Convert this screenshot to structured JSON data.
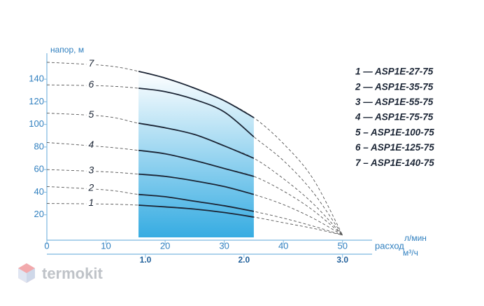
{
  "chart_data": {
    "type": "line",
    "y_label": "напор, м",
    "x_label": "расход",
    "x_unit": "л/мин",
    "x2_unit": "м³/ч",
    "x": [
      0,
      10,
      15.5,
      20,
      25,
      30,
      35,
      40,
      45,
      50
    ],
    "xlim": [
      0,
      55
    ],
    "xticks": [
      0,
      10,
      20,
      30,
      40,
      50
    ],
    "x2lim": [
      0,
      3.3
    ],
    "x2ticks": [
      {
        "value": 1,
        "label": "1.0"
      },
      {
        "value": 2,
        "label": "2.0"
      },
      {
        "value": 3,
        "label": "3.0"
      }
    ],
    "ylim": [
      0,
      163
    ],
    "yticks": [
      20,
      40,
      60,
      80,
      100,
      120,
      140
    ],
    "operating_range": [
      15.5,
      35
    ],
    "series": [
      {
        "label": "1",
        "name": "1 — ASP1E-27-75",
        "values": [
          30,
          29.5,
          28.5,
          27,
          25,
          22,
          18,
          13,
          8,
          2
        ]
      },
      {
        "label": "2",
        "name": "2 — ASP1E-35-75",
        "values": [
          45,
          42,
          38,
          36,
          32,
          28,
          23,
          17,
          10,
          2
        ]
      },
      {
        "label": "3",
        "name": "3 — ASP1E-55-75",
        "values": [
          60,
          58,
          56,
          54,
          50,
          45,
          38,
          29,
          17,
          2
        ]
      },
      {
        "label": "4",
        "name": "4 — ASP1E-75-75",
        "values": [
          84,
          80,
          77,
          74,
          68,
          61,
          54,
          41,
          24,
          2
        ]
      },
      {
        "label": "5",
        "name": "5 – ASP1E-100-75",
        "values": [
          110,
          107,
          101,
          97,
          91,
          81,
          70,
          52,
          30,
          2
        ]
      },
      {
        "label": "6",
        "name": "6 – ASP1E-125-75",
        "values": [
          135,
          134,
          132,
          129,
          122,
          111,
          89,
          68,
          40,
          2
        ]
      },
      {
        "label": "7",
        "name": "7 – ASP1E-140-75",
        "values": [
          155,
          152,
          147,
          141,
          132,
          121,
          106,
          83,
          52,
          2
        ]
      }
    ],
    "watermark": "termokit"
  }
}
